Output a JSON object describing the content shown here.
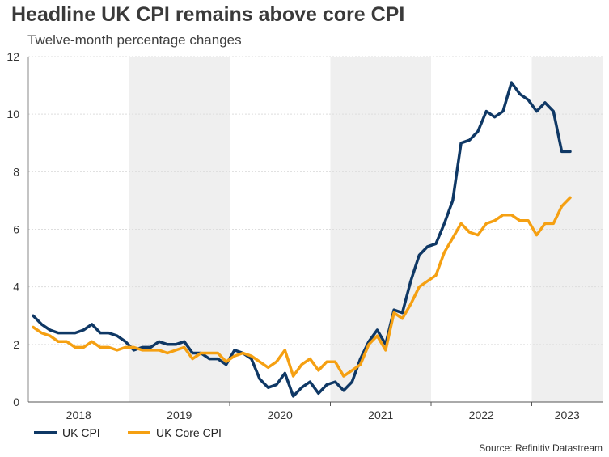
{
  "title": "Headline UK CPI remains above core CPI",
  "subtitle": "Twelve-month percentage changes",
  "source": "Source: Refinitiv Datastream",
  "colors": {
    "uk_cpi": "#0f3865",
    "uk_core_cpi": "#f5a012",
    "band": "#efefef",
    "grid": "#dddddd",
    "axis_text": "#333333"
  },
  "chart_data": {
    "type": "line",
    "title": "Headline UK CPI remains above core CPI",
    "subtitle": "Twelve-month percentage changes",
    "xlabel": "",
    "ylabel": "",
    "ylim": [
      0,
      12
    ],
    "y_ticks": [
      0,
      2,
      4,
      6,
      8,
      10,
      12
    ],
    "x_start": "2018-01",
    "x_end": "2023-05",
    "x_tick_labels": [
      "2018",
      "2019",
      "2020",
      "2021",
      "2022",
      "2023"
    ],
    "shaded_years": [
      "2019",
      "2021",
      "2023"
    ],
    "grid": true,
    "legend_position": "bottom-left",
    "series": [
      {
        "name": "UK CPI",
        "color": "#0f3865",
        "values": [
          3.0,
          2.7,
          2.5,
          2.4,
          2.4,
          2.4,
          2.5,
          2.7,
          2.4,
          2.4,
          2.3,
          2.1,
          1.8,
          1.9,
          1.9,
          2.1,
          2.0,
          2.0,
          2.1,
          1.7,
          1.7,
          1.5,
          1.5,
          1.3,
          1.8,
          1.7,
          1.5,
          0.8,
          0.5,
          0.6,
          1.0,
          0.2,
          0.5,
          0.7,
          0.3,
          0.6,
          0.7,
          0.4,
          0.7,
          1.5,
          2.1,
          2.5,
          2.0,
          3.2,
          3.1,
          4.2,
          5.1,
          5.4,
          5.5,
          6.2,
          7.0,
          9.0,
          9.1,
          9.4,
          10.1,
          9.9,
          10.1,
          11.1,
          10.7,
          10.5,
          10.1,
          10.4,
          10.1,
          8.7,
          8.7
        ]
      },
      {
        "name": "UK Core CPI",
        "color": "#f5a012",
        "values": [
          2.6,
          2.4,
          2.3,
          2.1,
          2.1,
          1.9,
          1.9,
          2.1,
          1.9,
          1.9,
          1.8,
          1.9,
          1.9,
          1.8,
          1.8,
          1.8,
          1.7,
          1.8,
          1.9,
          1.5,
          1.7,
          1.7,
          1.7,
          1.4,
          1.6,
          1.7,
          1.6,
          1.4,
          1.2,
          1.4,
          1.8,
          0.9,
          1.3,
          1.5,
          1.1,
          1.4,
          1.4,
          0.9,
          1.1,
          1.3,
          2.0,
          2.3,
          1.8,
          3.1,
          2.9,
          3.4,
          4.0,
          4.2,
          4.4,
          5.2,
          5.7,
          6.2,
          5.9,
          5.8,
          6.2,
          6.3,
          6.5,
          6.5,
          6.3,
          6.3,
          5.8,
          6.2,
          6.2,
          6.8,
          7.1
        ]
      }
    ]
  }
}
